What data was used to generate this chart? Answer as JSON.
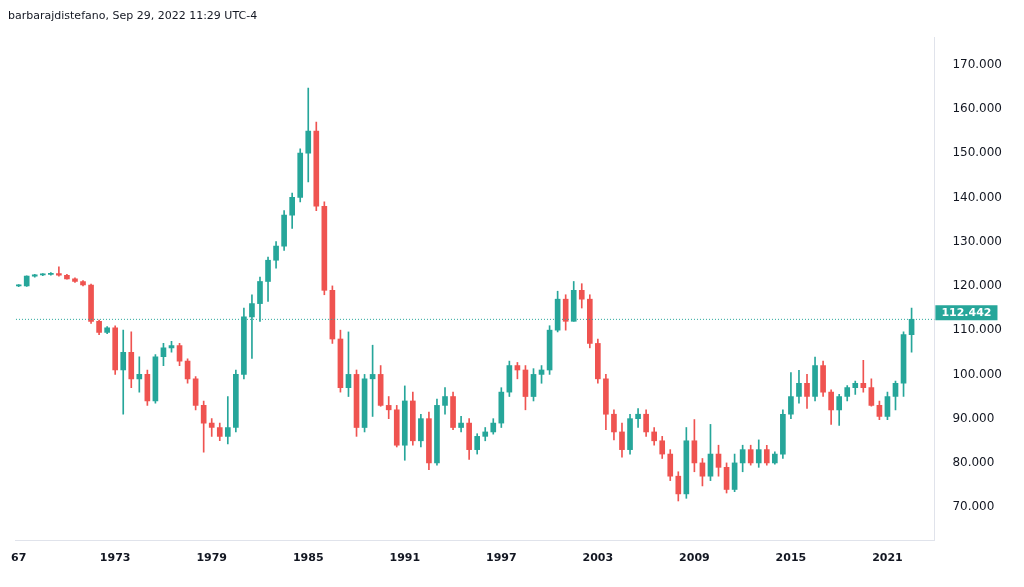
{
  "chart_data": {
    "type": "candlestick",
    "title": "barbarajdistefano, Sep 29, 2022 11:29 UTC-4",
    "x": [
      "1967-01",
      "1967-07",
      "1968-01",
      "1968-07",
      "1969-01",
      "1969-07",
      "1970-01",
      "1970-07",
      "1971-01",
      "1971-07",
      "1972-01",
      "1972-07",
      "1973-01",
      "1973-07",
      "1974-01",
      "1974-07",
      "1975-01",
      "1975-07",
      "1976-01",
      "1976-07",
      "1977-01",
      "1977-07",
      "1978-01",
      "1978-07",
      "1979-01",
      "1979-07",
      "1980-01",
      "1980-07",
      "1981-01",
      "1981-07",
      "1982-01",
      "1982-07",
      "1983-01",
      "1983-07",
      "1984-01",
      "1984-07",
      "1985-01",
      "1985-07",
      "1986-01",
      "1986-07",
      "1987-01",
      "1987-07",
      "1988-01",
      "1988-07",
      "1989-01",
      "1989-07",
      "1990-01",
      "1990-07",
      "1991-01",
      "1991-07",
      "1992-01",
      "1992-07",
      "1993-01",
      "1993-07",
      "1994-01",
      "1994-07",
      "1995-01",
      "1995-07",
      "1996-01",
      "1996-07",
      "1997-01",
      "1997-07",
      "1998-01",
      "1998-07",
      "1999-01",
      "1999-07",
      "2000-01",
      "2000-07",
      "2001-01",
      "2001-07",
      "2002-01",
      "2002-07",
      "2003-01",
      "2003-07",
      "2004-01",
      "2004-07",
      "2005-01",
      "2005-07",
      "2006-01",
      "2006-07",
      "2007-01",
      "2007-07",
      "2008-01",
      "2008-07",
      "2009-01",
      "2009-07",
      "2010-01",
      "2010-07",
      "2011-01",
      "2011-07",
      "2012-01",
      "2012-07",
      "2013-01",
      "2013-07",
      "2014-01",
      "2014-07",
      "2015-01",
      "2015-07",
      "2016-01",
      "2016-07",
      "2017-01",
      "2017-07",
      "2018-01",
      "2018-07",
      "2019-01",
      "2019-07",
      "2020-01",
      "2020-07",
      "2021-01",
      "2021-07",
      "2022-01",
      "2022-07"
    ],
    "ohlc": [
      [
        120,
        120.3,
        119.8,
        120
      ],
      [
        120,
        122.3,
        119.9,
        122.2
      ],
      [
        122.2,
        122.6,
        122,
        122.5
      ],
      [
        122.5,
        122.8,
        122.3,
        122.6
      ],
      [
        122.6,
        123,
        122.4,
        122.8
      ],
      [
        122.8,
        124.3,
        122.2,
        122.4
      ],
      [
        122.4,
        122.6,
        121.5,
        121.6
      ],
      [
        121.6,
        121.8,
        120.8,
        121
      ],
      [
        121,
        121.2,
        120,
        120.2
      ],
      [
        120.2,
        120.4,
        111.5,
        112
      ],
      [
        112,
        112.3,
        109,
        109.5
      ],
      [
        109.5,
        110.8,
        109.2,
        110.5
      ],
      [
        110.5,
        111,
        100,
        101
      ],
      [
        101,
        110,
        91,
        105
      ],
      [
        105,
        109.6,
        97,
        99
      ],
      [
        99,
        104,
        96,
        100
      ],
      [
        100,
        101,
        93,
        94
      ],
      [
        94,
        104.5,
        93.5,
        104
      ],
      [
        104,
        107,
        102,
        106
      ],
      [
        106,
        107.5,
        105,
        106.5
      ],
      [
        106.5,
        107,
        102,
        103
      ],
      [
        103,
        103.5,
        98,
        99
      ],
      [
        99,
        99.5,
        92,
        93
      ],
      [
        93,
        94,
        82.4,
        89
      ],
      [
        89,
        90,
        86,
        88
      ],
      [
        88,
        89,
        85,
        86
      ],
      [
        86,
        95,
        84.3,
        88
      ],
      [
        88,
        101,
        87,
        100
      ],
      [
        100,
        115,
        99,
        113
      ],
      [
        113,
        118,
        103.6,
        116
      ],
      [
        116,
        122,
        112,
        121
      ],
      [
        121,
        126.5,
        116.5,
        125.8
      ],
      [
        125.8,
        130,
        124,
        129
      ],
      [
        129,
        137,
        128,
        136
      ],
      [
        136,
        141,
        133,
        140
      ],
      [
        140,
        151,
        139,
        150
      ],
      [
        150,
        164.7,
        143.5,
        155
      ],
      [
        155,
        157,
        137,
        138
      ],
      [
        138,
        139,
        118,
        119
      ],
      [
        119,
        120,
        107,
        108
      ],
      [
        108,
        110,
        96,
        97
      ],
      [
        97,
        109.6,
        95,
        100
      ],
      [
        100,
        101,
        86,
        88
      ],
      [
        88,
        100,
        87,
        99
      ],
      [
        99,
        106.6,
        90.5,
        100
      ],
      [
        100,
        102,
        92.8,
        93
      ],
      [
        93,
        95,
        90,
        92
      ],
      [
        92,
        93,
        83.6,
        84
      ],
      [
        84,
        97.4,
        80.6,
        94
      ],
      [
        94,
        96,
        84,
        85
      ],
      [
        85,
        91,
        83.6,
        90
      ],
      [
        90,
        91.5,
        78.5,
        80
      ],
      [
        80,
        94.4,
        79.5,
        93
      ],
      [
        93,
        97,
        91,
        95
      ],
      [
        95,
        96,
        87.5,
        88
      ],
      [
        88,
        90.5,
        87,
        89
      ],
      [
        89,
        90,
        80.8,
        83
      ],
      [
        83,
        86.6,
        82,
        86
      ],
      [
        86,
        88,
        85,
        87
      ],
      [
        87,
        90,
        86.5,
        89
      ],
      [
        89,
        97,
        88,
        96
      ],
      [
        96,
        103,
        95,
        102
      ],
      [
        102,
        102.7,
        99,
        101
      ],
      [
        101,
        102,
        92,
        95
      ],
      [
        95,
        101.3,
        94,
        100
      ],
      [
        100,
        102,
        98,
        101
      ],
      [
        101,
        111,
        100,
        110
      ],
      [
        110,
        118.8,
        109.6,
        117
      ],
      [
        117,
        118,
        110,
        112
      ],
      [
        112,
        121,
        112,
        119
      ],
      [
        119,
        120.5,
        115,
        117
      ],
      [
        117,
        118,
        106,
        107
      ],
      [
        107,
        108,
        98,
        99
      ],
      [
        99,
        100,
        87.5,
        91
      ],
      [
        91,
        92,
        85.2,
        87
      ],
      [
        87,
        89,
        81.3,
        83
      ],
      [
        83,
        91,
        82,
        90
      ],
      [
        90,
        92.3,
        88,
        91
      ],
      [
        91,
        92,
        86,
        87
      ],
      [
        87,
        88,
        84,
        85
      ],
      [
        85,
        86,
        81,
        82
      ],
      [
        82,
        83,
        76,
        77
      ],
      [
        77,
        78,
        71.4,
        73
      ],
      [
        73,
        88,
        72,
        85
      ],
      [
        85,
        89.8,
        78,
        80
      ],
      [
        80,
        81,
        74.8,
        77
      ],
      [
        77,
        88.7,
        76,
        82
      ],
      [
        82,
        84,
        77,
        79
      ],
      [
        79,
        80,
        73.2,
        74
      ],
      [
        74,
        82,
        73.5,
        80
      ],
      [
        80,
        84,
        78,
        83
      ],
      [
        83,
        84,
        79.5,
        80
      ],
      [
        80,
        85.2,
        79,
        83
      ],
      [
        83,
        84,
        79.5,
        80
      ],
      [
        80,
        82.5,
        79.7,
        82
      ],
      [
        82,
        92,
        81,
        91
      ],
      [
        91,
        100.4,
        90,
        95
      ],
      [
        95,
        100.9,
        93.5,
        98
      ],
      [
        98,
        100,
        92.3,
        95
      ],
      [
        95,
        103.9,
        94,
        102
      ],
      [
        102,
        103,
        95,
        96
      ],
      [
        96,
        96.5,
        88.7,
        92
      ],
      [
        92,
        95.5,
        88.5,
        95
      ],
      [
        95,
        97.5,
        94,
        97
      ],
      [
        97,
        98.5,
        95.5,
        98
      ],
      [
        98,
        103.2,
        96,
        97
      ],
      [
        97,
        99,
        92.8,
        93
      ],
      [
        93,
        94,
        89.8,
        90.5
      ],
      [
        90.5,
        96,
        89.8,
        95
      ],
      [
        95,
        98.5,
        92,
        98
      ],
      [
        98,
        109.6,
        95,
        109
      ],
      [
        109,
        115,
        105,
        112.442
      ]
    ],
    "xlim": [
      "1966-11",
      "2023-12"
    ],
    "xticks": [
      {
        "value": "1967",
        "label": "67"
      },
      "1973",
      "1979",
      "1985",
      "1991",
      "1997",
      "2003",
      "2009",
      "2015",
      "2021"
    ],
    "ylim": [
      62.4,
      176.2
    ],
    "yticks": [
      {
        "value": 70,
        "label": "70.000"
      },
      {
        "value": 80,
        "label": "80.000"
      },
      {
        "value": 90,
        "label": "90.000"
      },
      {
        "value": 100,
        "label": "100.000"
      },
      {
        "value": 110,
        "label": "110.000"
      },
      {
        "value": 120,
        "label": "120.000"
      },
      {
        "value": 130,
        "label": "130.000"
      },
      {
        "value": 140,
        "label": "140.000"
      },
      {
        "value": 150,
        "label": "150.000"
      },
      {
        "value": 160,
        "label": "160.000"
      },
      {
        "value": 170,
        "label": "170.000"
      }
    ],
    "ref_lines": [
      {
        "axis": "y",
        "value": 112.442,
        "label": "112.442",
        "color": "#26a69a",
        "line_style": "dotted"
      }
    ]
  }
}
